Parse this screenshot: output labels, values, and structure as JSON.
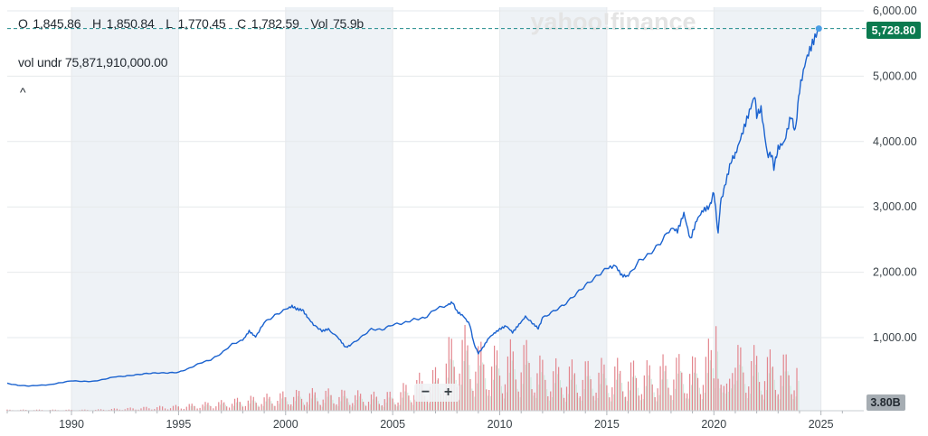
{
  "watermark": "yahoo!finance",
  "ohlc": {
    "o_label": "O",
    "o_value": "1,845.86",
    "h_label": "H",
    "h_value": "1,850.84",
    "l_label": "L",
    "l_value": "1,770.45",
    "c_label": "C",
    "c_value": "1,782.59",
    "vol_label": "Vol",
    "vol_value": "75.9b"
  },
  "volume_under": {
    "label": "vol undr",
    "value": "75,871,910,000.00"
  },
  "collapse_icon": "chevron-up-icon",
  "zoom": {
    "minus": "−",
    "plus": "+"
  },
  "chart_data": {
    "type": "line",
    "price_axis": {
      "ylim": [
        0,
        6000
      ],
      "ticks": [
        1000,
        2000,
        3000,
        4000,
        5000,
        6000
      ],
      "tick_labels": [
        "1,000.00",
        "2,000.00",
        "3,000.00",
        "4,000.00",
        "5,000.00",
        "6,000.00"
      ],
      "last_price": 5728.8,
      "last_price_label": "5,728.80"
    },
    "volume_axis": {
      "current_label": "3.80B"
    },
    "x_axis": {
      "xlim": [
        1987.0,
        2027.0
      ],
      "ticks": [
        1990,
        1995,
        2000,
        2005,
        2010,
        2015,
        2020,
        2025
      ],
      "tick_labels": [
        "1990",
        "1995",
        "2000",
        "2005",
        "2010",
        "2015",
        "2020",
        "2025"
      ]
    },
    "shaded_periods": [
      [
        1990,
        1995
      ],
      [
        2000,
        2005
      ],
      [
        2010,
        2015
      ],
      [
        2020,
        2025
      ]
    ],
    "line_color": "#1a62cf",
    "volume_color": "#e3868e",
    "price_series": {
      "x": [
        1987.0,
        1987.5,
        1988.0,
        1988.5,
        1989.0,
        1989.5,
        1990.0,
        1990.5,
        1991.0,
        1991.5,
        1992.0,
        1992.5,
        1993.0,
        1993.5,
        1994.0,
        1994.5,
        1995.0,
        1995.5,
        1996.0,
        1996.5,
        1997.0,
        1997.5,
        1998.0,
        1998.3,
        1998.6,
        1999.0,
        1999.5,
        2000.0,
        2000.3,
        2000.5,
        2000.8,
        2001.0,
        2001.3,
        2001.7,
        2002.0,
        2002.5,
        2002.8,
        2003.0,
        2003.5,
        2004.0,
        2004.5,
        2005.0,
        2005.5,
        2006.0,
        2006.5,
        2007.0,
        2007.5,
        2007.8,
        2008.0,
        2008.3,
        2008.6,
        2008.8,
        2009.0,
        2009.2,
        2009.5,
        2009.8,
        2010.0,
        2010.3,
        2010.6,
        2010.9,
        2011.2,
        2011.6,
        2011.8,
        2012.0,
        2012.5,
        2013.0,
        2013.5,
        2014.0,
        2014.5,
        2015.0,
        2015.4,
        2015.7,
        2016.0,
        2016.5,
        2017.0,
        2017.5,
        2018.0,
        2018.3,
        2018.6,
        2018.9,
        2019.2,
        2019.5,
        2019.8,
        2020.0,
        2020.2,
        2020.3,
        2020.5,
        2020.8,
        2021.0,
        2021.3,
        2021.6,
        2021.9,
        2022.0,
        2022.2,
        2022.5,
        2022.7,
        2022.8,
        2023.0,
        2023.3,
        2023.6,
        2023.8,
        2024.0,
        2024.3,
        2024.6,
        2024.9
      ],
      "y": [
        300,
        270,
        260,
        270,
        280,
        310,
        340,
        330,
        330,
        360,
        400,
        410,
        430,
        450,
        460,
        460,
        470,
        530,
        610,
        660,
        760,
        900,
        960,
        1100,
        1010,
        1230,
        1340,
        1430,
        1480,
        1440,
        1420,
        1320,
        1200,
        1100,
        1130,
        980,
        850,
        880,
        1000,
        1130,
        1120,
        1200,
        1220,
        1280,
        1300,
        1440,
        1490,
        1540,
        1400,
        1330,
        1200,
        900,
        760,
        840,
        1000,
        1080,
        1130,
        1180,
        1080,
        1200,
        1320,
        1200,
        1140,
        1300,
        1400,
        1500,
        1650,
        1800,
        1930,
        2060,
        2100,
        1950,
        1940,
        2170,
        2280,
        2450,
        2680,
        2630,
        2900,
        2500,
        2800,
        2950,
        3000,
        3230,
        2580,
        3050,
        3300,
        3700,
        3800,
        4100,
        4400,
        4700,
        4400,
        4500,
        3800,
        3800,
        3600,
        3900,
        4000,
        4400,
        4150,
        4800,
        5250,
        5500,
        5728.8
      ]
    },
    "volume_series": {
      "x": [
        1987,
        1988,
        1989,
        1990,
        1991,
        1992,
        1993,
        1994,
        1995,
        1996,
        1997,
        1998,
        1999,
        2000,
        2001,
        2002,
        2003,
        2004,
        2005,
        2006,
        2007,
        2008,
        2008.5,
        2009,
        2010,
        2011,
        2012,
        2013,
        2014,
        2015,
        2016,
        2017,
        2018,
        2019,
        2020,
        2020.2,
        2021,
        2022,
        2023,
        2024
      ],
      "v": [
        0.1,
        0.1,
        0.1,
        0.1,
        0.1,
        0.2,
        0.3,
        0.4,
        0.5,
        0.7,
        0.9,
        1.2,
        1.4,
        1.7,
        1.9,
        1.9,
        1.8,
        1.6,
        1.7,
        3.0,
        3.8,
        7.8,
        7.0,
        6.0,
        5.5,
        6.5,
        4.6,
        4.3,
        4.4,
        4.5,
        4.4,
        4.3,
        5.0,
        4.7,
        6.5,
        9.2,
        5.8,
        5.5,
        5.0,
        5.0
      ]
    }
  }
}
